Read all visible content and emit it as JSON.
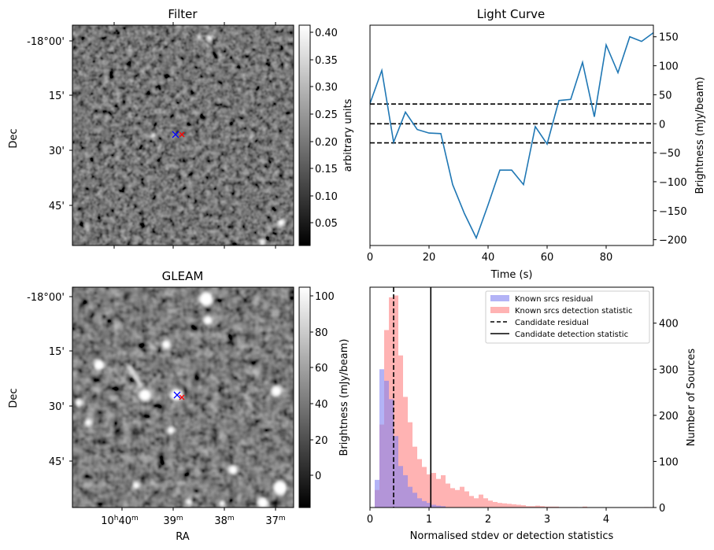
{
  "panels": {
    "filter": {
      "title": "Filter",
      "ylabel": "Dec",
      "yticks": [
        "-18°00'",
        "15'",
        "30'",
        "45'"
      ],
      "colorbar": {
        "label": "arbitrary units",
        "ticks": [
          "0.05",
          "0.10",
          "0.15",
          "0.20",
          "0.25",
          "0.30",
          "0.35",
          "0.40"
        ]
      }
    },
    "gleam": {
      "title": "GLEAM",
      "ylabel": "Dec",
      "xlabel": "RA",
      "yticks": [
        "-18°00'",
        "15'",
        "30'",
        "45'"
      ],
      "xticks": [
        {
          "main": "10",
          "h": "h",
          "mm": "40",
          "m": "m"
        },
        {
          "main": "39",
          "h": "",
          "mm": "",
          "m": "m"
        },
        {
          "main": "38",
          "h": "",
          "mm": "",
          "m": "m"
        },
        {
          "main": "37",
          "h": "",
          "mm": "",
          "m": "m"
        }
      ],
      "colorbar": {
        "label": "Brightness (mJy/beam)",
        "ticks": [
          "0",
          "20",
          "40",
          "60",
          "80",
          "100"
        ]
      }
    }
  },
  "chart_data": [
    {
      "type": "line",
      "title": "Light Curve",
      "xlabel": "Time (s)",
      "ylabel": "Brightness (mJy/beam)",
      "xlim": [
        0,
        96
      ],
      "ylim": [
        -210,
        170
      ],
      "xticks": [
        0,
        20,
        40,
        60,
        80
      ],
      "yticks": [
        -200,
        -150,
        -100,
        -50,
        0,
        50,
        100,
        150
      ],
      "series": [
        {
          "color": "#1f77b4",
          "x": [
            0,
            4,
            8,
            12,
            16,
            20,
            24,
            28,
            32,
            36,
            40,
            44,
            48,
            52,
            56,
            60,
            64,
            68,
            72,
            76,
            80,
            84,
            88,
            92,
            96
          ],
          "y": [
            35,
            92,
            -32,
            20,
            -10,
            -16,
            -17,
            -105,
            -155,
            -197,
            -140,
            -80,
            -80,
            -105,
            -5,
            -35,
            40,
            42,
            106,
            12,
            136,
            88,
            150,
            142,
            157
          ]
        }
      ],
      "hlines": [
        {
          "y": 34,
          "style": "dashed"
        },
        {
          "y": 0,
          "style": "dashed"
        },
        {
          "y": -33,
          "style": "dashed"
        }
      ]
    },
    {
      "type": "bar",
      "xlabel": "Normalised stdev or detection statistics",
      "ylabel": "Number of Sources",
      "xlim": [
        0,
        4.8
      ],
      "ylim": [
        0,
        478
      ],
      "xticks": [
        0,
        1,
        2,
        3,
        4
      ],
      "yticks": [
        0,
        100,
        200,
        300,
        400
      ],
      "bin_width": 0.08,
      "series": [
        {
          "name": "Known srcs residual",
          "color": "#8080f0",
          "bin_start": 0.0,
          "values": [
            0,
            60,
            300,
            275,
            235,
            155,
            90,
            70,
            45,
            32,
            20,
            14,
            10,
            6,
            4,
            3
          ]
        },
        {
          "name": "Known srcs detection statistic",
          "color": "#ff9999",
          "bin_start": 0.08,
          "values": [
            38,
            180,
            385,
            456,
            460,
            330,
            240,
            185,
            132,
            105,
            88,
            72,
            75,
            62,
            70,
            52,
            42,
            38,
            45,
            35,
            25,
            20,
            28,
            20,
            15,
            12,
            10,
            9,
            8,
            7,
            6,
            5,
            3,
            3,
            4,
            3,
            2,
            2,
            2,
            1,
            1,
            1,
            1,
            0,
            2,
            0,
            0,
            0,
            0,
            0,
            0,
            0,
            0,
            0,
            0,
            0,
            0,
            1
          ]
        }
      ],
      "vlines": [
        {
          "name": "Candidate residual",
          "x": 0.4,
          "style": "dashed"
        },
        {
          "name": "Candidate detection statistic",
          "x": 1.03,
          "style": "solid"
        }
      ]
    }
  ]
}
